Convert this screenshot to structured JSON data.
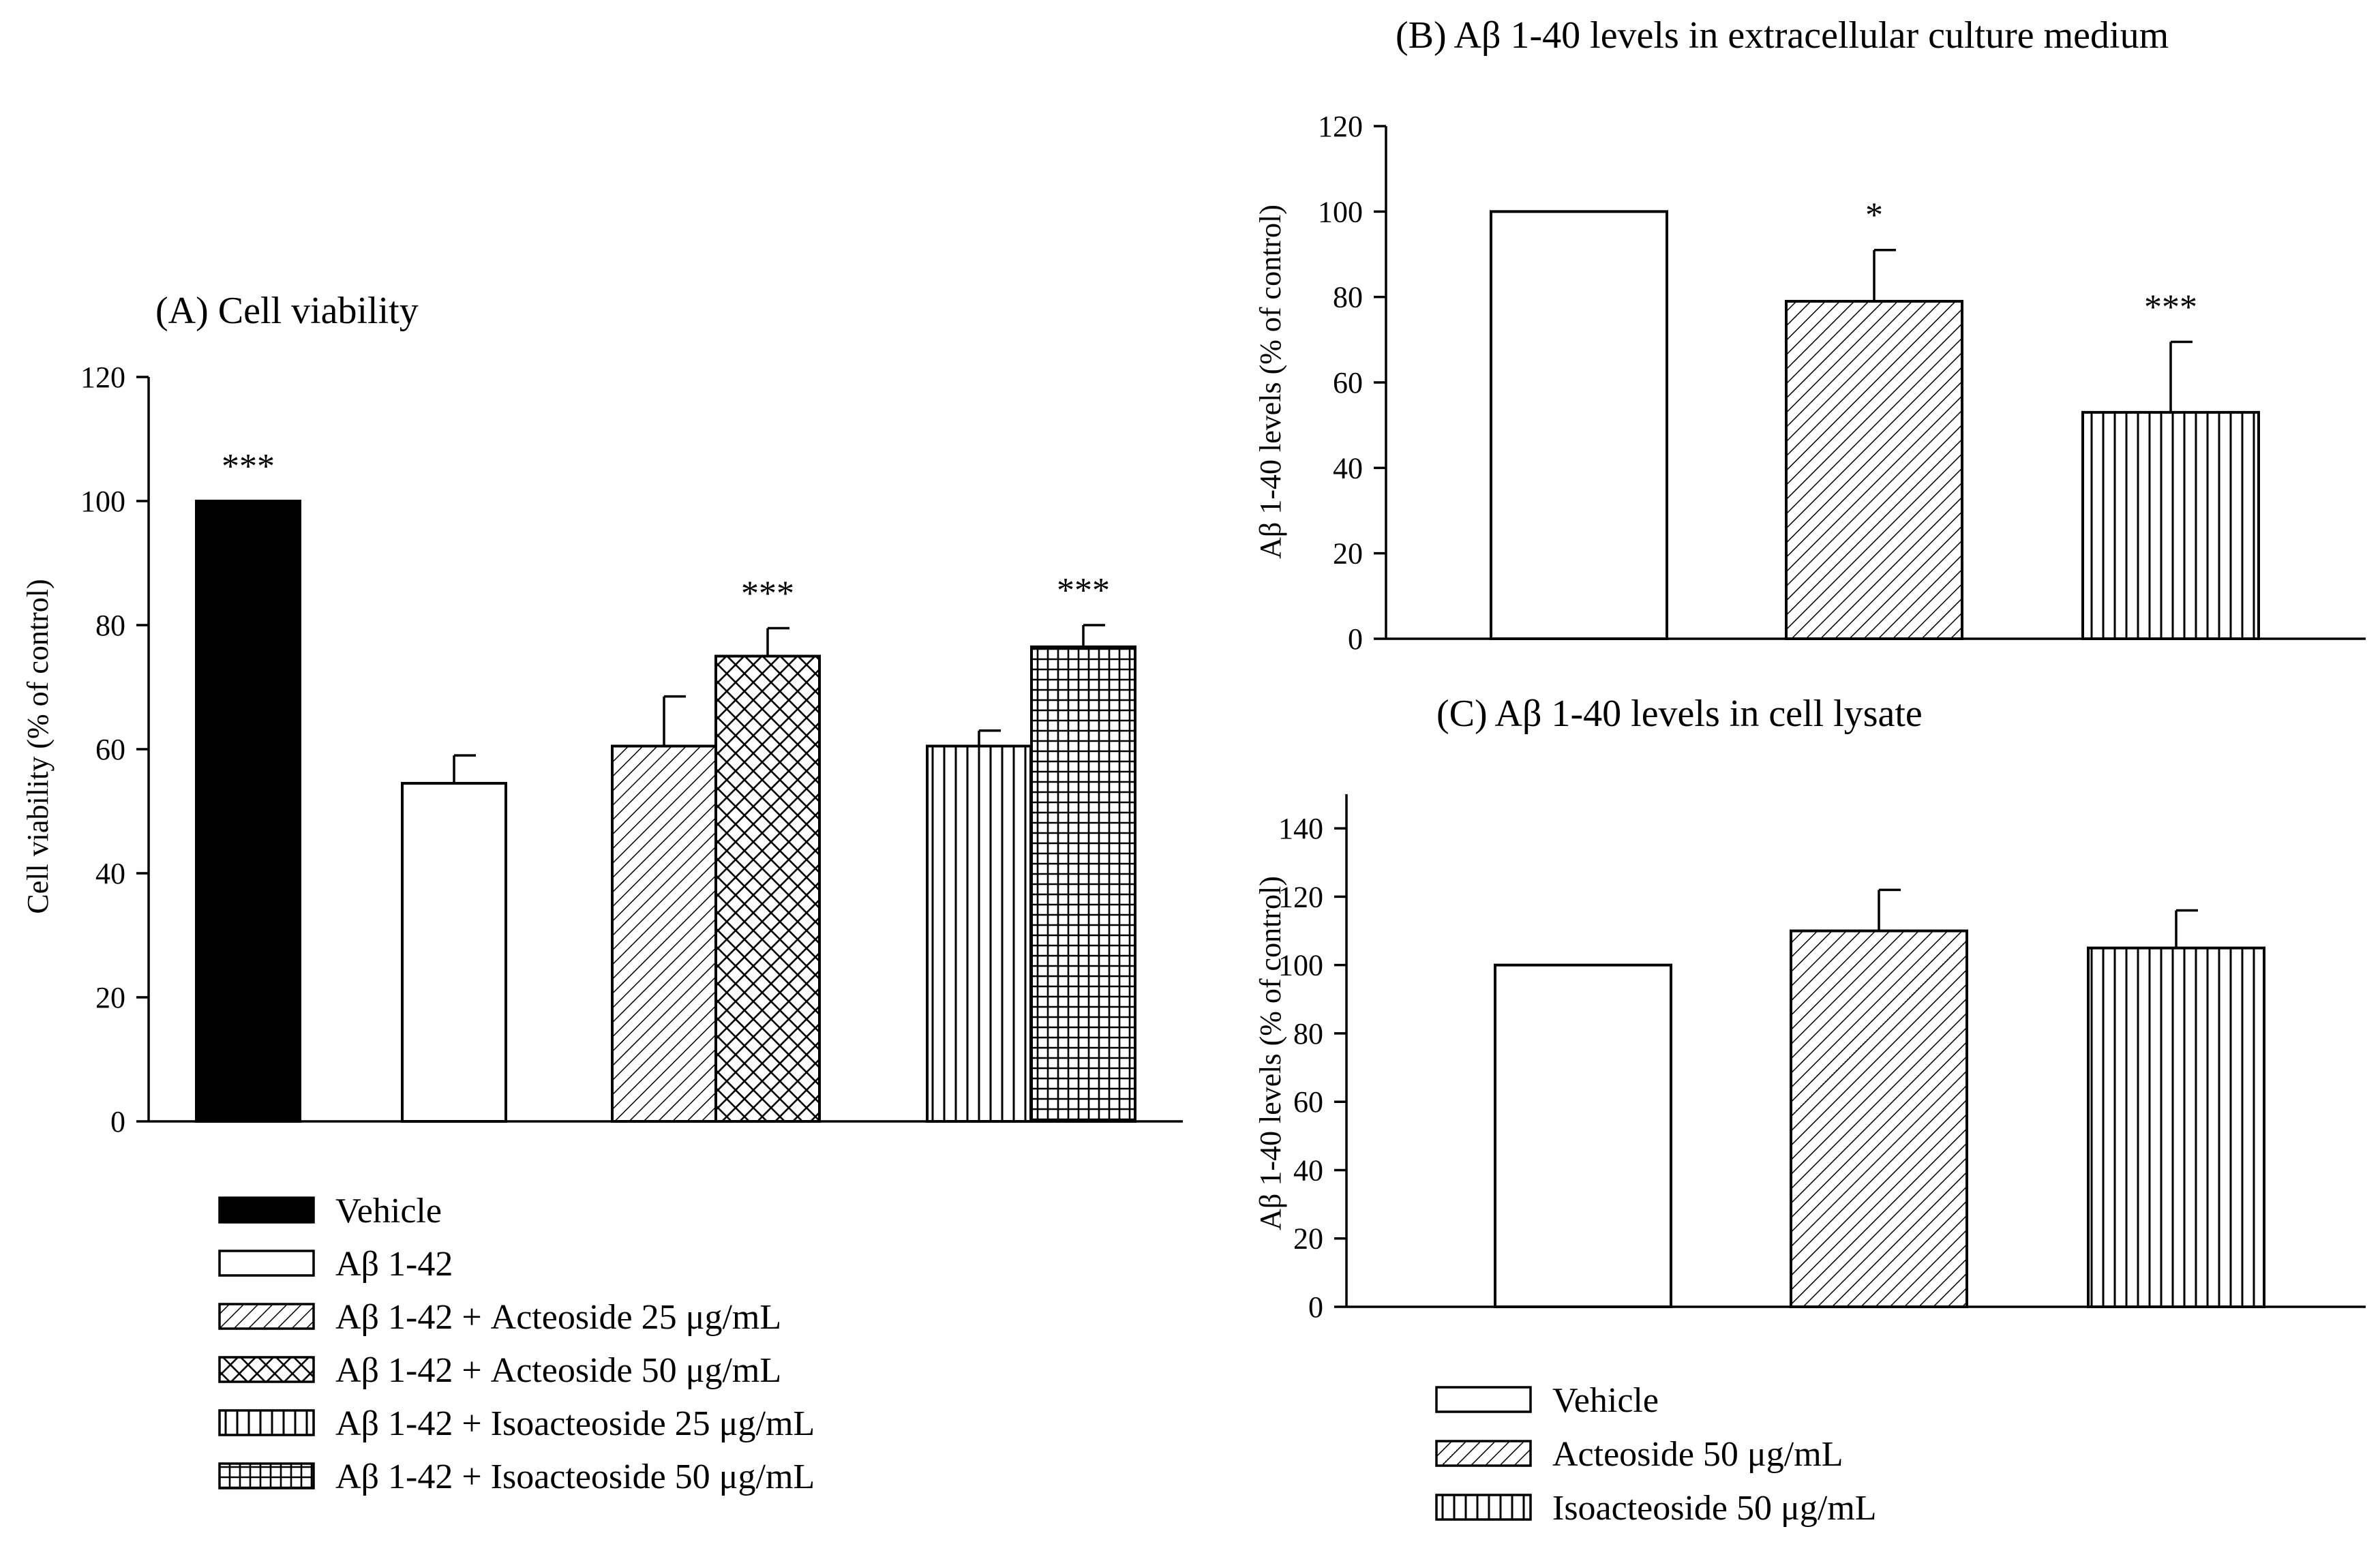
{
  "figure_domain": "Chart",
  "chart_data": [
    {
      "id": "A",
      "type": "bar",
      "title": "(A) Cell viability",
      "ylabel": "Cell viability (% of control)",
      "xlabel": "",
      "ylim": [
        0,
        120
      ],
      "yticks": [
        "0",
        "20",
        "40",
        "60",
        "80",
        "100",
        "120"
      ],
      "bars": [
        {
          "series": "Vehicle",
          "value": 100,
          "error": 0,
          "significance": "***",
          "fill": "solid"
        },
        {
          "series": "Aβ 1-42",
          "value": 54.5,
          "error": 4.5,
          "significance": "",
          "fill": "white"
        },
        {
          "series": "Aβ 1-42 + Acteoside 25 μg/mL",
          "value": 60.5,
          "error": 8,
          "significance": "",
          "fill": "diagonal"
        },
        {
          "series": "Aβ 1-42 + Acteoside 50 μg/mL",
          "value": 75,
          "error": 4.5,
          "significance": "***",
          "fill": "crosshatch"
        },
        {
          "series": "Aβ 1-42 + Isoacteoside 25 μg/mL",
          "value": 60.5,
          "error": 2.5,
          "significance": "",
          "fill": "vertical"
        },
        {
          "series": "Aβ 1-42 + Isoacteoside 50 μg/mL",
          "value": 76.5,
          "error": 3.5,
          "significance": "***",
          "fill": "grid"
        }
      ],
      "legend": [
        {
          "label": "Vehicle",
          "fill": "solid"
        },
        {
          "label": "Aβ 1-42",
          "fill": "white"
        },
        {
          "label": "Aβ 1-42 + Acteoside 25 μg/mL",
          "fill": "diagonal"
        },
        {
          "label": "Aβ 1-42 + Acteoside 50 μg/mL",
          "fill": "crosshatch"
        },
        {
          "label": "Aβ 1-42 + Isoacteoside 25 μg/mL",
          "fill": "vertical"
        },
        {
          "label": "Aβ 1-42 + Isoacteoside 50 μg/mL",
          "fill": "grid"
        }
      ],
      "legend_position": "below"
    },
    {
      "id": "B",
      "type": "bar",
      "title": "(B) Aβ 1-40 levels in extracellular culture medium",
      "ylabel": "Aβ 1-40 levels (% of control)",
      "xlabel": "",
      "ylim": [
        0,
        120
      ],
      "yticks": [
        "0",
        "20",
        "40",
        "60",
        "80",
        "100",
        "120"
      ],
      "bars": [
        {
          "series": "Vehicle",
          "value": 100,
          "error": 0,
          "significance": "",
          "fill": "white"
        },
        {
          "series": "Acteoside 50 μg/mL",
          "value": 79,
          "error": 12,
          "significance": "*",
          "fill": "diagonal"
        },
        {
          "series": "Isoacteoside 50 μg/mL",
          "value": 53,
          "error": 16.5,
          "significance": "***",
          "fill": "vertical"
        }
      ]
    },
    {
      "id": "C",
      "type": "bar",
      "title": "(C) Aβ 1-40 levels in cell lysate",
      "ylabel": "Aβ 1-40 levels (% of control)",
      "xlabel": "",
      "ylim": [
        0,
        150
      ],
      "yticks": [
        "0",
        "20",
        "40",
        "60",
        "80",
        "100",
        "120",
        "140"
      ],
      "bars": [
        {
          "series": "Vehicle",
          "value": 100,
          "error": 0,
          "significance": "",
          "fill": "white"
        },
        {
          "series": "Acteoside 50 μg/mL",
          "value": 110,
          "error": 12,
          "significance": "",
          "fill": "diagonal"
        },
        {
          "series": "Isoacteoside 50 μg/mL",
          "value": 105,
          "error": 11,
          "significance": "",
          "fill": "vertical"
        }
      ],
      "legend": [
        {
          "label": "Vehicle",
          "fill": "white"
        },
        {
          "label": "Acteoside 50 μg/mL",
          "fill": "diagonal"
        },
        {
          "label": "Isoacteoside 50 μg/mL",
          "fill": "vertical"
        }
      ],
      "legend_position": "below"
    }
  ]
}
